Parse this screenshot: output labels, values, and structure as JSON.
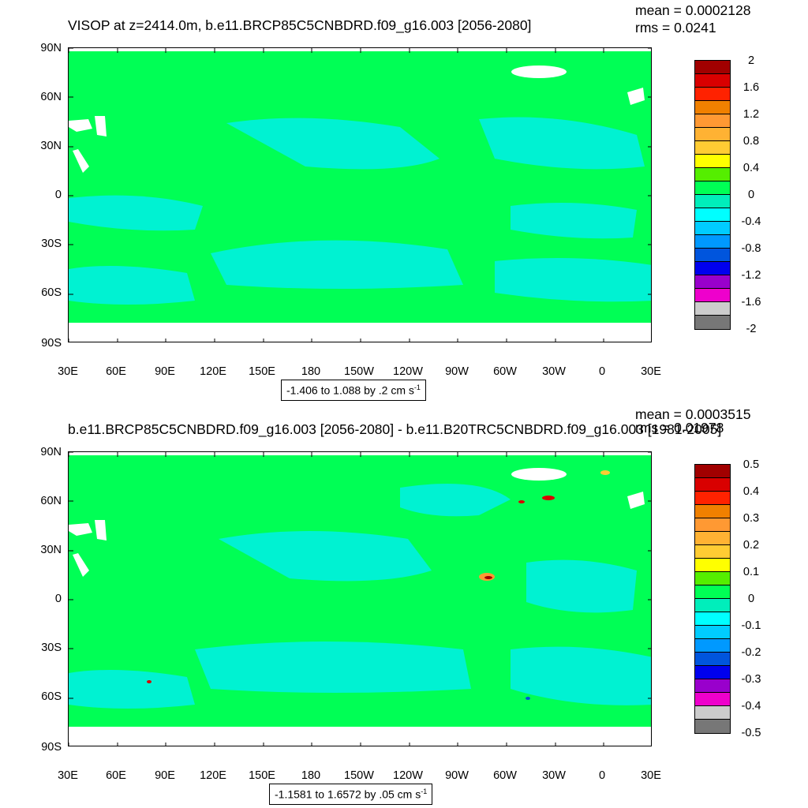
{
  "panels": [
    {
      "title": "VISOP at z=2414.0m, b.e11.BRCP85C5CNBDRD.f09_g16.003 [2056-2080]",
      "mean_text": "mean = 0.0002128",
      "rms_text": "rms = 0.0241",
      "range_text": "-1.406 to 1.088 by .2 cm s",
      "range_unit_exp": "-1",
      "colorbar_labels": [
        "2",
        "1.6",
        "1.2",
        "0.8",
        "0.4",
        "0",
        "-0.4",
        "-0.8",
        "-1.2",
        "-1.6",
        "-2"
      ]
    },
    {
      "title": "b.e11.BRCP85C5CNBDRD.f09_g16.003 [2056-2080] - b.e11.B20TRC5CNBDRD.f09_g16.003 [1981-2005]",
      "mean_text": "mean = 0.0003515",
      "rms_text": "rms = 0.01978",
      "range_text": "-1.1581 to 1.6572 by .05 cm s",
      "range_unit_exp": "-1",
      "colorbar_labels": [
        "0.5",
        "0.4",
        "0.3",
        "0.2",
        "0.1",
        "0",
        "-0.1",
        "-0.2",
        "-0.3",
        "-0.4",
        "-0.5"
      ]
    }
  ],
  "axes": {
    "y_labels": [
      "90N",
      "60N",
      "30N",
      "0",
      "30S",
      "60S",
      "90S"
    ],
    "x_labels": [
      "30E",
      "60E",
      "90E",
      "120E",
      "150E",
      "180",
      "150W",
      "120W",
      "90W",
      "60W",
      "30W",
      "0",
      "30E"
    ]
  },
  "colorbar_colors": [
    "#a10000",
    "#d90000",
    "#ff2200",
    "#f08000",
    "#ff9933",
    "#ffb233",
    "#ffcc33",
    "#ffff00",
    "#55ee00",
    "#00ff55",
    "#00eebb",
    "#00ffff",
    "#00ccff",
    "#0099ff",
    "#0055dd",
    "#0000ee",
    "#9900cc",
    "#ee00cc",
    "#cccccc",
    "#777777"
  ],
  "map_colors": {
    "ocean": "#00ff55",
    "negative": "#00f2d2",
    "land": "#ffffff"
  }
}
